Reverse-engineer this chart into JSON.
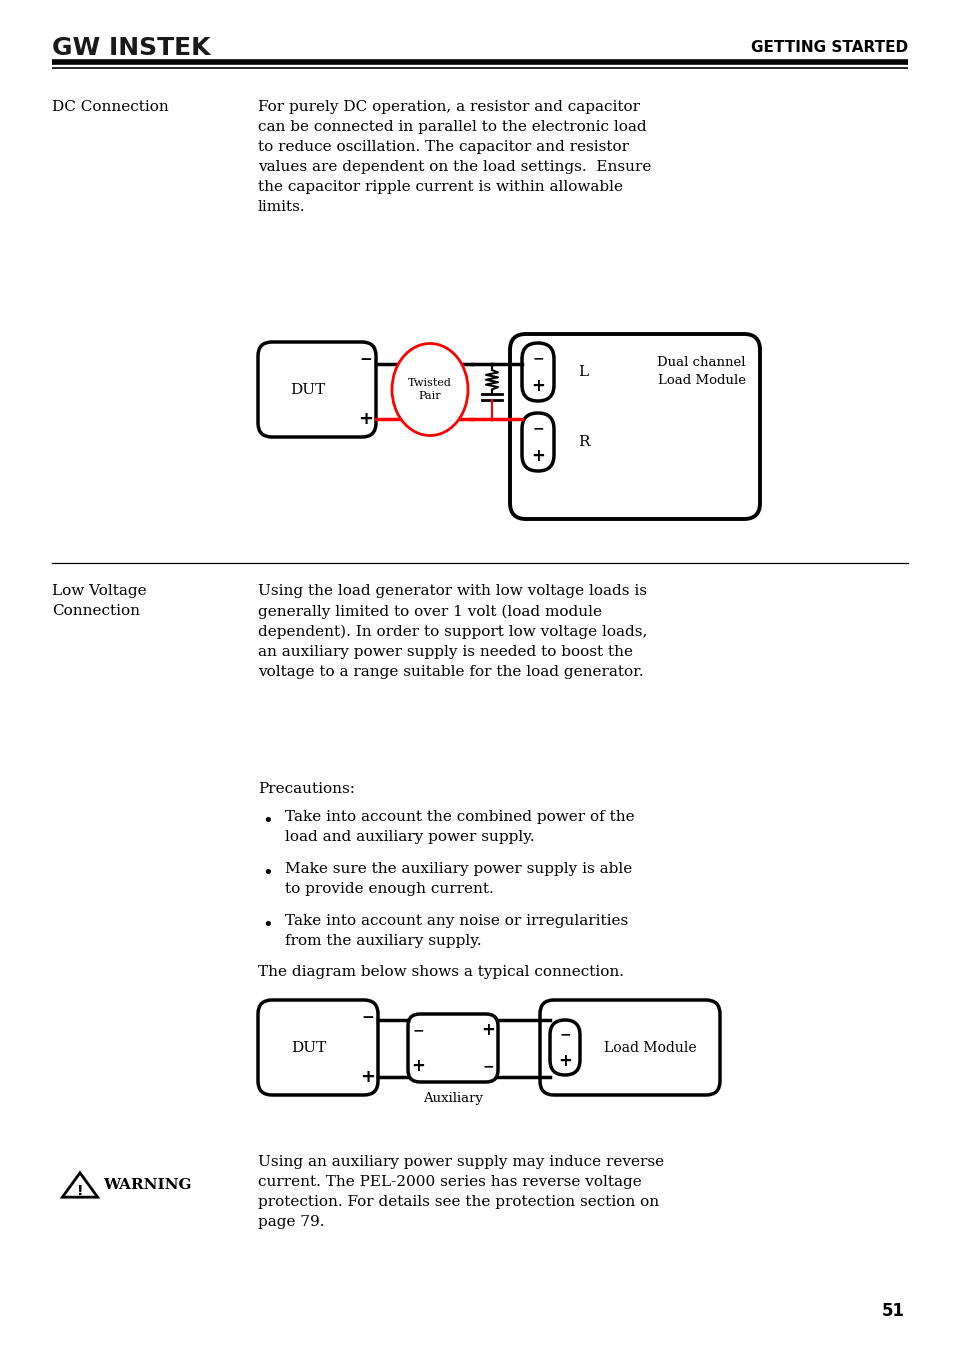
{
  "page_bg": "#ffffff",
  "header_logo": "GW INSTEK",
  "header_right": "GETTING STARTED",
  "page_number": "51",
  "dc_label": "DC Connection",
  "dc_text": "For purely DC operation, a resistor and capacitor\ncan be connected in parallel to the electronic load\nto reduce oscillation. The capacitor and resistor\nvalues are dependent on the load settings.  Ensure\nthe capacitor ripple current is within allowable\nlimits.",
  "lv_label": "Low Voltage\nConnection",
  "lv_text": "Using the load generator with low voltage loads is\ngenerally limited to over 1 volt (load module\ndependent). In order to support low voltage loads,\nan auxiliary power supply is needed to boost the\nvoltage to a range suitable for the load generator.",
  "precautions_title": "Precautions:",
  "bullets": [
    "Take into account the combined power of the\nload and auxiliary power supply.",
    "Make sure the auxiliary power supply is able\nto provide enough current.",
    "Take into account any noise or irregularities\nfrom the auxiliary supply."
  ],
  "typical_text": "The diagram below shows a typical connection.",
  "warning_text": "Using an auxiliary power supply may induce reverse\ncurrent. The PEL-2000 series has reverse voltage\nprotection. For details see the protection section on\npage 79."
}
